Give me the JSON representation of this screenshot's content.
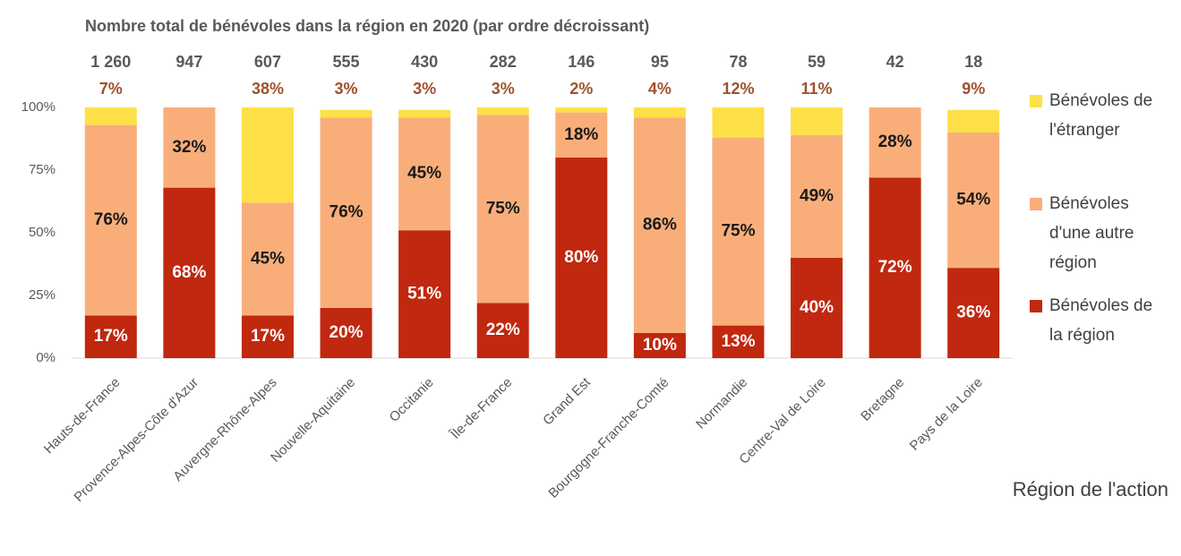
{
  "chart_data": {
    "type": "stacked_bar",
    "title": "Nombre total de bénévoles dans la région en 2020 (par ordre décroissant)",
    "x_label": "Région de l'action",
    "categories": [
      "Hauts-de-France",
      "Provence-Alpes-Côte d'Azur",
      "Auvergne-Rhône-Alpes",
      "Nouvelle-Aquitaine",
      "Occitanie",
      "Île-de-France",
      "Grand Est",
      "Bourgogne-Franche-Comté",
      "Normandie",
      "Centre-Val de Loire",
      "Bretagne",
      "Pays de la Loire"
    ],
    "totals": {
      "values": [
        1260,
        947,
        607,
        555,
        430,
        282,
        146,
        95,
        78,
        59,
        42,
        18
      ],
      "value_labels": [
        "1 260",
        "947",
        "607",
        "555",
        "430",
        "282",
        "146",
        "95",
        "78",
        "59",
        "42",
        "18"
      ]
    },
    "series": [
      {
        "name": "Bénévoles de la région",
        "color": "#c0280f",
        "values": [
          17,
          68,
          17,
          20,
          51,
          22,
          80,
          10,
          13,
          40,
          72,
          36
        ],
        "value_labels": [
          "17%",
          "68%",
          "17%",
          "20%",
          "51%",
          "22%",
          "80%",
          "10%",
          "13%",
          "40%",
          "72%",
          "36%"
        ]
      },
      {
        "name": "Bénévoles d'une autre région",
        "color": "#f9ae7a",
        "values": [
          76,
          32,
          45,
          76,
          45,
          75,
          18,
          86,
          75,
          49,
          28,
          54
        ],
        "value_labels": [
          "76%",
          "32%",
          "45%",
          "76%",
          "45%",
          "75%",
          "18%",
          "86%",
          "75%",
          "49%",
          "28%",
          "54%"
        ]
      },
      {
        "name": "Bénévoles de l'étranger",
        "color": "#fde047",
        "values": [
          7,
          0,
          38,
          3,
          3,
          3,
          2,
          4,
          12,
          11,
          0,
          9
        ],
        "value_labels": [
          "7%",
          null,
          "38%",
          "3%",
          "3%",
          "3%",
          "2%",
          "4%",
          "12%",
          "11%",
          null,
          "9%"
        ]
      }
    ],
    "ylim": [
      0,
      100
    ],
    "yticks": [
      {
        "value": 0,
        "label": "0%"
      },
      {
        "value": 25,
        "label": "25%"
      },
      {
        "value": 50,
        "label": "50%"
      },
      {
        "value": 75,
        "label": "75%"
      },
      {
        "value": 100,
        "label": "100%"
      }
    ],
    "grid": false
  }
}
